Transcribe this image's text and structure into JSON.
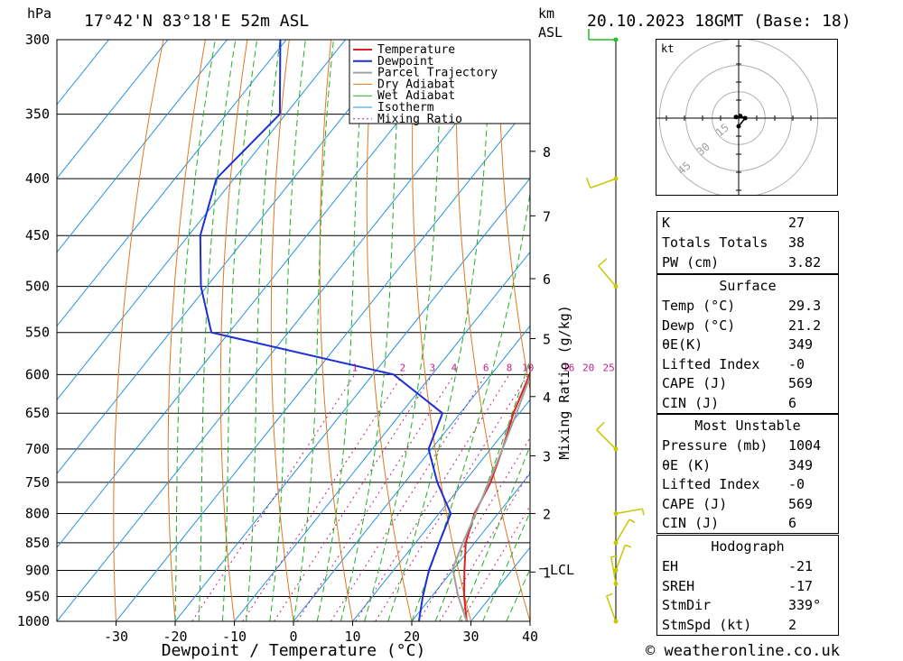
{
  "header": {
    "hpa_unit": "hPa",
    "location": "17°42'N  83°18'E  52m  ASL",
    "km_unit": "km",
    "asl_unit": "ASL",
    "datetime": "20.10.2023  18GMT  (Base: 18)"
  },
  "footer": {
    "credit": "© weatheronline.co.uk"
  },
  "colors": {
    "temperature": "#e02020",
    "dewpoint": "#1d2fd6",
    "parcel": "#a0a0a0",
    "dry_adiabat": "#e07820",
    "wet_adiabat": "#20b020",
    "isotherm": "#2090e0",
    "mixing_ratio": "#c0208a",
    "wind": "#c8c800",
    "wind_top": "#20c020"
  },
  "chart_data": {
    "type": "line",
    "subtype": "skew-T log-P sounding",
    "xlabel": "Dewpoint / Temperature (°C)",
    "ylabel": "hPa",
    "xlim": [
      -40,
      40
    ],
    "ylim": [
      1000,
      300
    ],
    "pressure_ticks": [
      300,
      350,
      400,
      450,
      500,
      550,
      600,
      650,
      700,
      750,
      800,
      850,
      900,
      950,
      1000
    ],
    "temp_ticks": [
      -30,
      -20,
      -10,
      0,
      10,
      20,
      30,
      40
    ],
    "height_label": "km ASL",
    "height_ticks": [
      {
        "km": "1",
        "p": 903
      },
      {
        "km": "2",
        "p": 800
      },
      {
        "km": "3",
        "p": 710
      },
      {
        "km": "4",
        "p": 628
      },
      {
        "km": "5",
        "p": 557
      },
      {
        "km": "6",
        "p": 492
      },
      {
        "km": "7",
        "p": 432
      },
      {
        "km": "8",
        "p": 378
      }
    ],
    "lcl": {
      "label": "LCL",
      "p": 897
    },
    "mixing_ratio_label": "Mixing Ratio (g/kg)",
    "mixing_ratio_lines": [
      "1",
      "2",
      "3",
      "4",
      "6",
      "8",
      "10",
      "16",
      "20",
      "25"
    ],
    "legend": [
      "Temperature",
      "Dewpoint",
      "Parcel Trajectory",
      "Dry Adiabat",
      "Wet Adiabat",
      "Isotherm",
      "Mixing Ratio"
    ],
    "legend_position": "top-right",
    "grid": true,
    "series": [
      {
        "name": "Temperature",
        "points": [
          {
            "p": 1000,
            "t": 29.3
          },
          {
            "p": 950,
            "t": 25.5
          },
          {
            "p": 900,
            "t": 22.0
          },
          {
            "p": 850,
            "t": 18.5
          },
          {
            "p": 800,
            "t": 16.0
          },
          {
            "p": 750,
            "t": 14.5
          },
          {
            "p": 700,
            "t": 12.0
          },
          {
            "p": 650,
            "t": 9.0
          },
          {
            "p": 600,
            "t": 6.5
          },
          {
            "p": 550,
            "t": 3.0
          },
          {
            "p": 500,
            "t": -4.0
          },
          {
            "p": 450,
            "t": -9.5
          },
          {
            "p": 400,
            "t": -16.5
          },
          {
            "p": 370,
            "t": -21.0
          }
        ]
      },
      {
        "name": "Dewpoint",
        "points": [
          {
            "p": 1000,
            "t": 21.2
          },
          {
            "p": 950,
            "t": 18.5
          },
          {
            "p": 900,
            "t": 16.0
          },
          {
            "p": 850,
            "t": 14.0
          },
          {
            "p": 800,
            "t": 12.0
          },
          {
            "p": 750,
            "t": 5.5
          },
          {
            "p": 700,
            "t": -0.5
          },
          {
            "p": 650,
            "t": -3.0
          },
          {
            "p": 600,
            "t": -16.5
          },
          {
            "p": 550,
            "t": -53.0
          },
          {
            "p": 500,
            "t": -61.0
          },
          {
            "p": 450,
            "t": -68.0
          },
          {
            "p": 400,
            "t": -73.0
          },
          {
            "p": 350,
            "t": -71.0
          },
          {
            "p": 300,
            "t": -81.0
          }
        ]
      },
      {
        "name": "Parcel Trajectory",
        "points": [
          {
            "p": 1000,
            "t": 29.3
          },
          {
            "p": 950,
            "t": 24.5
          },
          {
            "p": 897,
            "t": 19.8
          },
          {
            "p": 850,
            "t": 18.0
          },
          {
            "p": 800,
            "t": 16.2
          },
          {
            "p": 750,
            "t": 14.2
          },
          {
            "p": 700,
            "t": 12.0
          },
          {
            "p": 650,
            "t": 9.5
          },
          {
            "p": 600,
            "t": 6.7
          },
          {
            "p": 550,
            "t": 3.2
          },
          {
            "p": 500,
            "t": -1.2
          },
          {
            "p": 450,
            "t": -6.5
          },
          {
            "p": 400,
            "t": -13.0
          },
          {
            "p": 370,
            "t": -18.0
          }
        ]
      }
    ],
    "wind_barbs": [
      {
        "p": 300,
        "dir": 270,
        "speed_kt": 10
      },
      {
        "p": 400,
        "dir": 250,
        "speed_kt": 10
      },
      {
        "p": 500,
        "dir": 320,
        "speed_kt": 10
      },
      {
        "p": 700,
        "dir": 315,
        "speed_kt": 10
      },
      {
        "p": 800,
        "dir": 80,
        "speed_kt": 5
      },
      {
        "p": 850,
        "dir": 30,
        "speed_kt": 5
      },
      {
        "p": 900,
        "dir": 20,
        "speed_kt": 5
      },
      {
        "p": 925,
        "dir": 350,
        "speed_kt": 5
      },
      {
        "p": 1000,
        "dir": 340,
        "speed_kt": 5
      }
    ]
  },
  "hodograph": {
    "unit": "kt",
    "ring_labels": [
      "15",
      "30",
      "45"
    ],
    "points": [
      {
        "u": -0.5,
        "v": 0.2
      },
      {
        "u": 0.3,
        "v": 0.4
      },
      {
        "u": 1.2,
        "v": 0.0
      },
      {
        "u": 0.0,
        "v": -1.5
      }
    ]
  },
  "indices": {
    "summary": [
      {
        "k": "K",
        "v": "27"
      },
      {
        "k": "Totals Totals",
        "v": "38"
      },
      {
        "k": "PW (cm)",
        "v": "3.82"
      }
    ],
    "surface_title": "Surface",
    "surface": [
      {
        "k": "Temp (°C)",
        "v": "29.3"
      },
      {
        "k": "Dewp (°C)",
        "v": "21.2"
      },
      {
        "k": "θE(K)",
        "v": "349"
      },
      {
        "k": "Lifted Index",
        "v": "-0"
      },
      {
        "k": "CAPE (J)",
        "v": "569"
      },
      {
        "k": "CIN (J)",
        "v": "6"
      }
    ],
    "mu_title": "Most Unstable",
    "most_unstable": [
      {
        "k": "Pressure (mb)",
        "v": "1004"
      },
      {
        "k": "θE (K)",
        "v": "349"
      },
      {
        "k": "Lifted Index",
        "v": "-0"
      },
      {
        "k": "CAPE (J)",
        "v": "569"
      },
      {
        "k": "CIN (J)",
        "v": "6"
      }
    ],
    "hodo_title": "Hodograph",
    "hodo": [
      {
        "k": "EH",
        "v": "-21"
      },
      {
        "k": "SREH",
        "v": "-17"
      },
      {
        "k": "StmDir",
        "v": "339°"
      },
      {
        "k": "StmSpd (kt)",
        "v": "2"
      }
    ]
  }
}
